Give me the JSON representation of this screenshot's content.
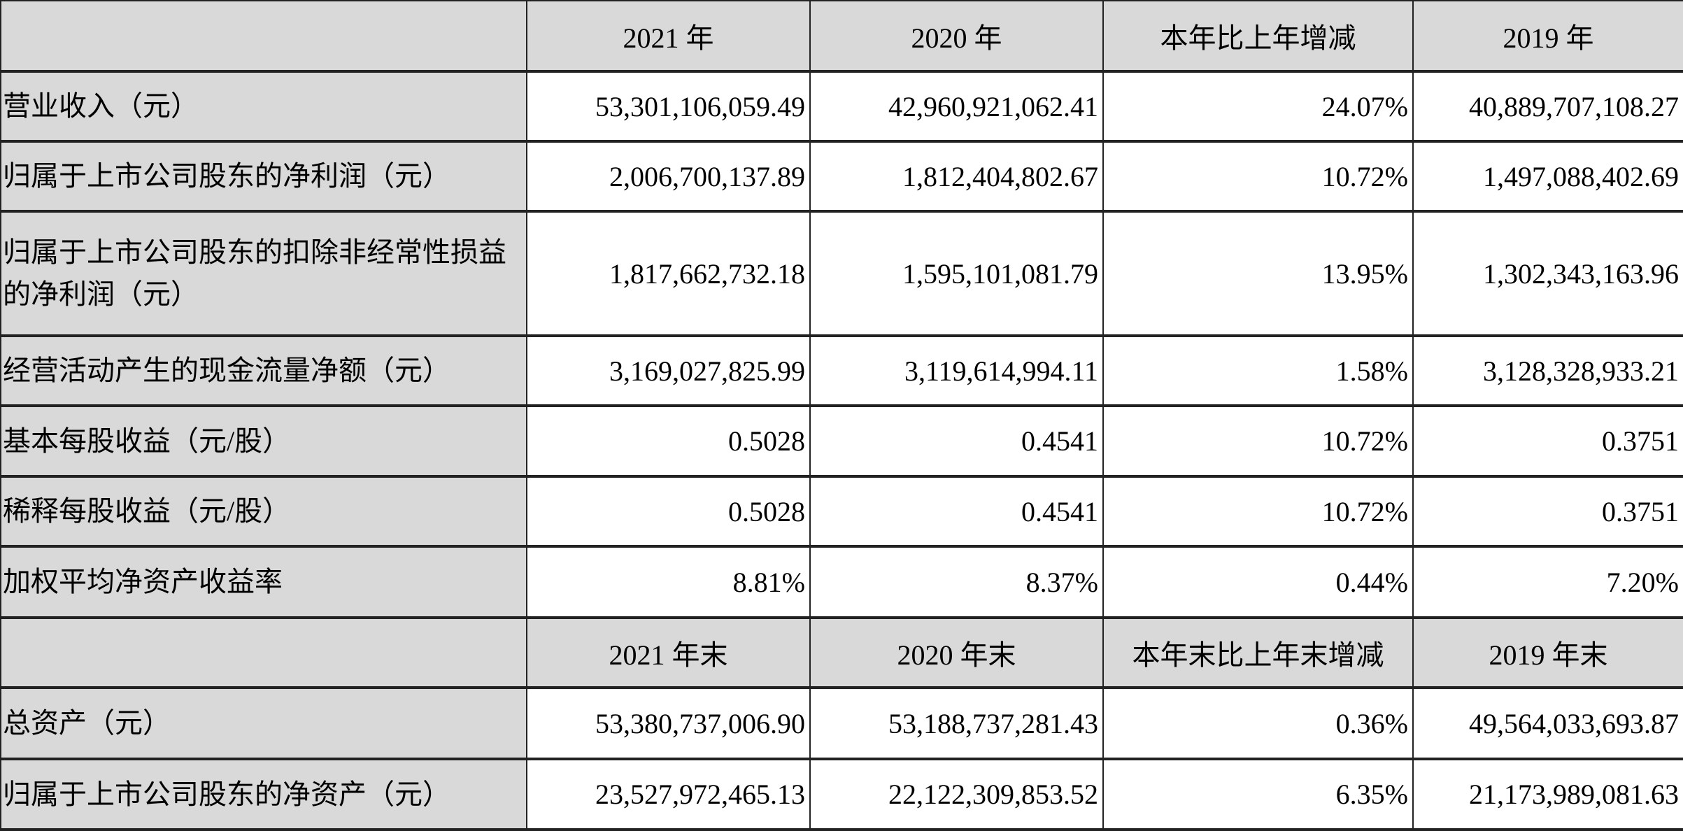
{
  "header1": [
    "",
    "2021 年",
    "2020 年",
    "本年比上年增减",
    "2019 年"
  ],
  "rows1": [
    {
      "label": "营业收入（元）",
      "values": [
        "53,301,106,059.49",
        "42,960,921,062.41",
        "24.07%",
        "40,889,707,108.27"
      ]
    },
    {
      "label": "归属于上市公司股东的净利润（元）",
      "values": [
        "2,006,700,137.89",
        "1,812,404,802.67",
        "10.72%",
        "1,497,088,402.69"
      ]
    },
    {
      "label": "归属于上市公司股东的扣除非经常性损益的净利润（元）",
      "values": [
        "1,817,662,732.18",
        "1,595,101,081.79",
        "13.95%",
        "1,302,343,163.96"
      ]
    },
    {
      "label": "经营活动产生的现金流量净额（元）",
      "values": [
        "3,169,027,825.99",
        "3,119,614,994.11",
        "1.58%",
        "3,128,328,933.21"
      ]
    },
    {
      "label": "基本每股收益（元/股）",
      "values": [
        "0.5028",
        "0.4541",
        "10.72%",
        "0.3751"
      ]
    },
    {
      "label": "稀释每股收益（元/股）",
      "values": [
        "0.5028",
        "0.4541",
        "10.72%",
        "0.3751"
      ]
    },
    {
      "label": "加权平均净资产收益率",
      "values": [
        "8.81%",
        "8.37%",
        "0.44%",
        "7.20%"
      ]
    }
  ],
  "header2": [
    "",
    "2021 年末",
    "2020 年末",
    "本年末比上年末增减",
    "2019 年末"
  ],
  "rows2": [
    {
      "label": "总资产（元）",
      "values": [
        "53,380,737,006.90",
        "53,188,737,281.43",
        "0.36%",
        "49,564,033,693.87"
      ]
    },
    {
      "label": "归属于上市公司股东的净资产（元）",
      "values": [
        "23,527,972,465.13",
        "22,122,309,853.52",
        "6.35%",
        "21,173,989,081.63"
      ]
    }
  ]
}
